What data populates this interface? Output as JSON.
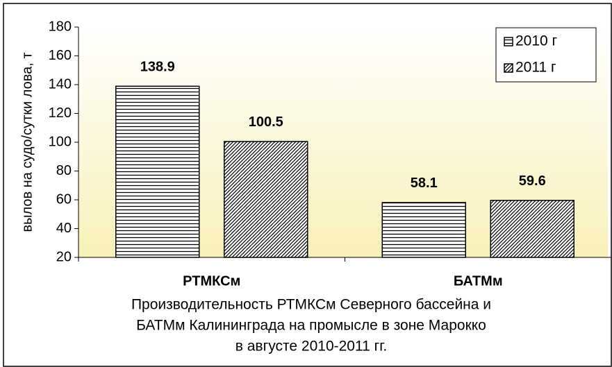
{
  "chart_data": {
    "type": "bar",
    "title": [
      "Производительность РТМКСм Северного бассейна и",
      "БАТМм Калининграда на промысле в зоне Марокко",
      "в августе 2010-2011 гг."
    ],
    "y_label": "вылов на судо/сутки лова, т",
    "categories": [
      "РТМКСм",
      "БАТМм"
    ],
    "series": [
      {
        "name": "2010 г",
        "color": "#000000",
        "pattern": "horizontal",
        "values": [
          138.9,
          58.1
        ]
      },
      {
        "name": "2011 г",
        "color": "#000000",
        "pattern": "diagonal",
        "values": [
          100.5,
          59.6
        ]
      }
    ],
    "ylim": [
      20,
      180
    ],
    "yticks": [
      20,
      40,
      60,
      80,
      100,
      120,
      140,
      160,
      180
    ],
    "legend": "top-right"
  }
}
